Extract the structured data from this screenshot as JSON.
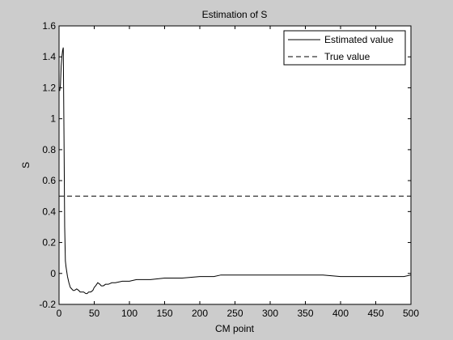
{
  "chart_data": {
    "type": "line",
    "title": "Estimation of S",
    "xlabel": "CM point",
    "ylabel": "S",
    "xlim": [
      0,
      500
    ],
    "ylim": [
      -0.2,
      1.6
    ],
    "xticks": [
      0,
      50,
      100,
      150,
      200,
      250,
      300,
      350,
      400,
      450,
      500
    ],
    "yticks": [
      -0.2,
      0,
      0.2,
      0.4,
      0.6,
      0.8,
      1,
      1.2,
      1.4,
      1.6
    ],
    "grid": false,
    "legend_position": "top-right",
    "series": [
      {
        "name": "Estimated value",
        "line_style": "solid",
        "color": "#000000",
        "x": [
          1,
          2,
          3,
          4,
          5,
          6,
          7,
          8,
          9,
          10,
          12,
          14,
          16,
          18,
          20,
          22,
          25,
          28,
          30,
          32,
          35,
          38,
          40,
          42,
          45,
          48,
          50,
          52,
          55,
          58,
          60,
          63,
          66,
          70,
          75,
          80,
          90,
          100,
          110,
          120,
          130,
          150,
          175,
          200,
          220,
          230,
          250,
          275,
          300,
          325,
          350,
          375,
          400,
          425,
          450,
          475,
          490,
          500
        ],
        "y": [
          1.18,
          1.22,
          1.34,
          1.4,
          1.44,
          1.46,
          0.9,
          0.3,
          0.08,
          0.04,
          -0.02,
          -0.06,
          -0.09,
          -0.1,
          -0.11,
          -0.11,
          -0.1,
          -0.11,
          -0.12,
          -0.12,
          -0.12,
          -0.13,
          -0.13,
          -0.12,
          -0.12,
          -0.11,
          -0.09,
          -0.08,
          -0.06,
          -0.07,
          -0.08,
          -0.08,
          -0.07,
          -0.07,
          -0.06,
          -0.06,
          -0.05,
          -0.05,
          -0.04,
          -0.04,
          -0.04,
          -0.03,
          -0.03,
          -0.02,
          -0.02,
          -0.01,
          -0.01,
          -0.01,
          -0.01,
          -0.01,
          -0.01,
          -0.01,
          -0.02,
          -0.02,
          -0.02,
          -0.02,
          -0.02,
          -0.01
        ]
      },
      {
        "name": "True value",
        "line_style": "dashed",
        "color": "#000000",
        "x": [
          0,
          500
        ],
        "y": [
          0.5,
          0.5
        ]
      }
    ]
  }
}
